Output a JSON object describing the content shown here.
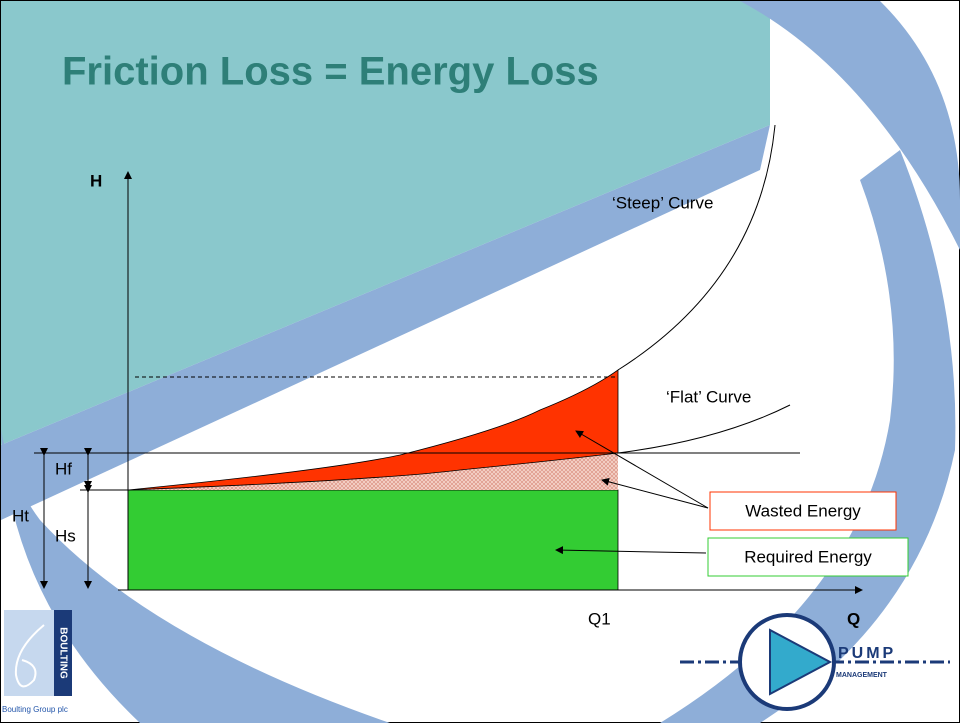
{
  "title": "Friction Loss = Energy Loss",
  "axes": {
    "y_label": "H",
    "x_label": "Q",
    "x_marker": "Q1"
  },
  "curves": {
    "steep": "‘Steep’ Curve",
    "flat": "‘Flat’ Curve"
  },
  "dimensions": {
    "total": "Ht",
    "friction": "Hf",
    "static": "Hs"
  },
  "legend": {
    "wasted": "Wasted Energy",
    "required": "Required Energy"
  },
  "logos": {
    "boulting": "BOULTING",
    "boulting_caption": "Boulting Group plc",
    "pump": "PUMP",
    "management": "MANAGEMENT"
  }
}
